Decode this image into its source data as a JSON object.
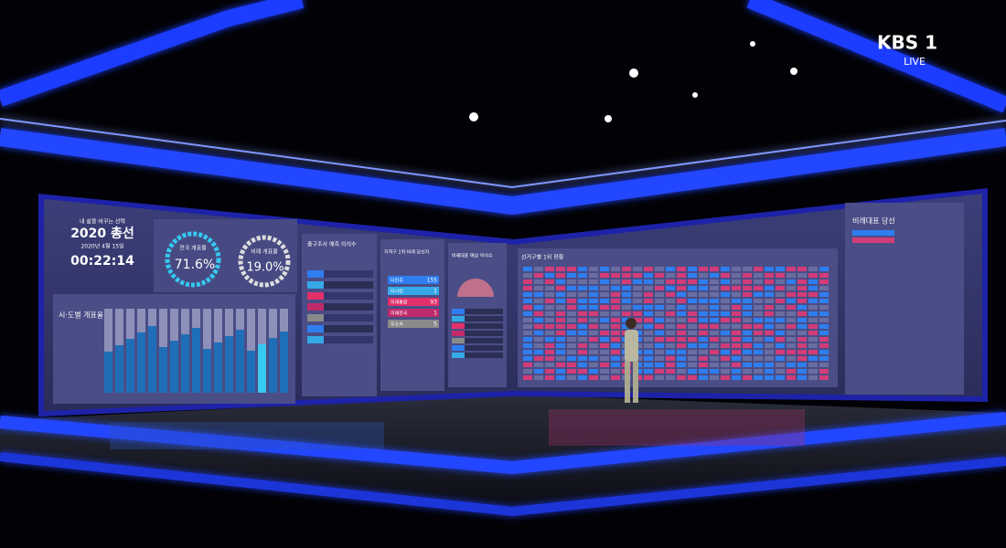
{
  "logo": {
    "channel": "KBS 1",
    "live": "LIVE"
  },
  "header": {
    "slogan": "내 삶을 바꾸는 선택",
    "title": "2020 총선",
    "date": "2020년 4월 15일",
    "clock": "00:22:14"
  },
  "turnout": [
    {
      "label": "전국 개표율",
      "value": "71.6%"
    },
    {
      "label": "비례 개표율",
      "value": "19.0%"
    }
  ],
  "panels": {
    "regional": "시·도별 개표율",
    "exit_poll": "출구조사 예측 의석수",
    "winners": "지역구 1위·비례 당선자",
    "seats": "비례대표 예상 의석수",
    "district": "선거구별 1위 현황",
    "pr": "비례대표 당선"
  },
  "parties": [
    {
      "name": "더민주",
      "seats": 155
    },
    {
      "name": "더시민",
      "seats": 1
    },
    {
      "name": "미래통합",
      "seats": 93
    },
    {
      "name": "미래한국",
      "seats": 1
    },
    {
      "name": "무소속",
      "seats": 5
    }
  ]
}
